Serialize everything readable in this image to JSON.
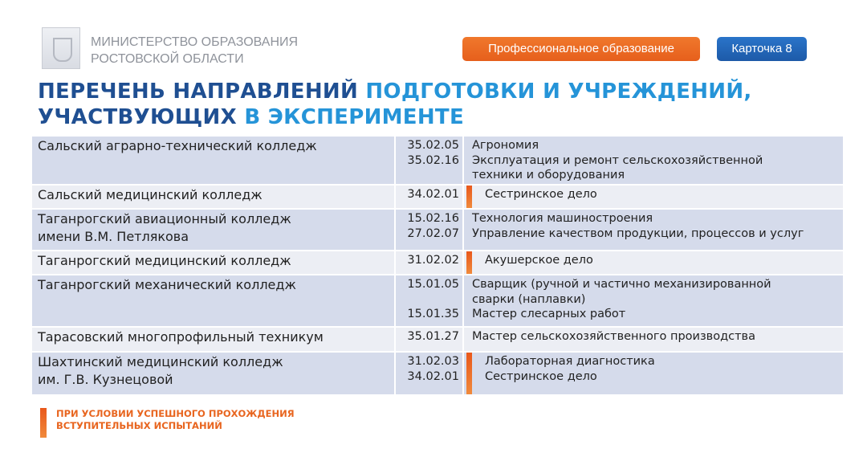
{
  "header": {
    "org_line1": "МИНИСТЕРСТВО ОБРАЗОВАНИЯ",
    "org_line2": "РОСТОВСКОЙ ОБЛАСТИ",
    "category_badge": "Профессиональное образование",
    "card_badge": "Карточка 8"
  },
  "title": {
    "line1_dark": "ПЕРЕЧЕНЬ НАПРАВЛЕНИЙ ",
    "line1_light": "ПОДГОТОВКИ И УЧРЕЖДЕНИЙ,",
    "line2_dark": "УЧАСТВУЮЩИХ ",
    "line2_light": "В ЭКСПЕРИМЕНТЕ"
  },
  "rows": [
    {
      "institution": [
        "Сальский аграрно-технический колледж"
      ],
      "marked": false,
      "height": 59,
      "programs": [
        {
          "code": "35.02.05",
          "lines": [
            "Агрономия"
          ]
        },
        {
          "code": "35.02.16",
          "lines": [
            "Эксплуатация и ремонт сельскохозяйственной",
            "техники и оборудования"
          ]
        }
      ]
    },
    {
      "institution": [
        "Сальский медицинский колледж"
      ],
      "marked": true,
      "height": 28,
      "programs": [
        {
          "code": "34.02.01",
          "lines": [
            "Сестринское дело"
          ]
        }
      ]
    },
    {
      "institution": [
        "Таганрогский авиационный колледж",
        "имени В.М. Петлякова"
      ],
      "marked": false,
      "height": 50,
      "programs": [
        {
          "code": "15.02.16",
          "lines": [
            "Технология машиностроения"
          ]
        },
        {
          "code": "27.02.07",
          "lines": [
            "Управление качеством продукции, процессов и услуг"
          ]
        }
      ]
    },
    {
      "institution": [
        "Таганрогский медицинский колледж"
      ],
      "marked": true,
      "height": 28,
      "programs": [
        {
          "code": "31.02.02",
          "lines": [
            "Акушерское дело"
          ]
        }
      ]
    },
    {
      "institution": [
        "Таганрогский механический колледж"
      ],
      "marked": false,
      "height": 63,
      "programs": [
        {
          "code": "15.01.05",
          "lines": [
            "Сварщик (ручной и частично механизированной",
            "сварки (наплавки)"
          ]
        },
        {
          "code": "15.01.35",
          "lines": [
            "Мастер слесарных работ"
          ]
        }
      ]
    },
    {
      "institution": [
        "Тарасовский многопрофильный техникум"
      ],
      "marked": false,
      "height": 29,
      "programs": [
        {
          "code": "35.01.27",
          "lines": [
            "Мастер сельскохозяйственного производства"
          ]
        }
      ]
    },
    {
      "institution": [
        "Шахтинский медицинский колледж",
        "им. Г.В. Кузнецовой"
      ],
      "marked": true,
      "height": 52,
      "programs": [
        {
          "code": "31.02.03",
          "lines": [
            "Лабораторная диагностика"
          ]
        },
        {
          "code": "34.02.01",
          "lines": [
            "Сестринское дело"
          ]
        }
      ]
    }
  ],
  "footnote": {
    "line1": "ПРИ УСЛОВИИ УСПЕШНОГО ПРОХОЖДЕНИЯ",
    "line2": "ВСТУПИТЕЛЬНЫХ ИСПЫТАНИЙ"
  },
  "colors": {
    "accent_orange": "#e8651f",
    "brand_blue": "#1f4f92",
    "light_blue": "#2594d8"
  }
}
